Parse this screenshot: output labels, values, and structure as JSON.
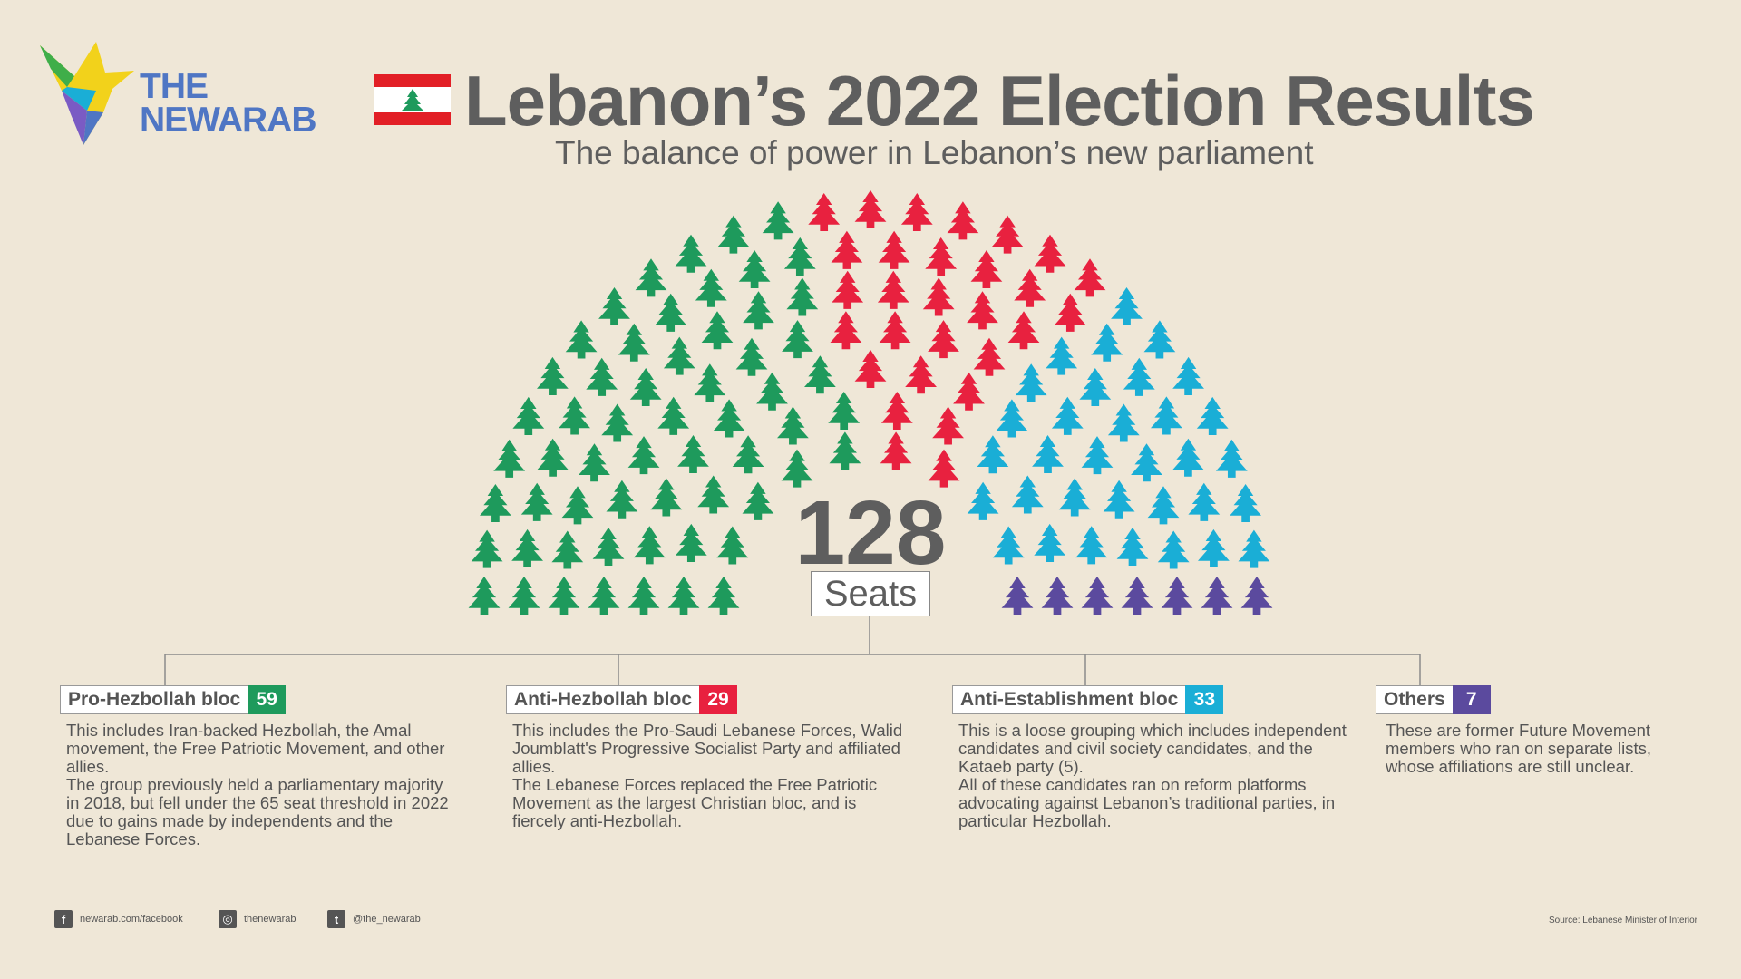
{
  "brand": {
    "line1": "THE",
    "line2": "NEWARAB"
  },
  "header": {
    "title": "Lebanon’s 2022 Election Results",
    "subtitle": "The balance of power in Lebanon’s new parliament"
  },
  "colors": {
    "background": "#efe7d7",
    "pro_hezbollah": "#1e9a5c",
    "anti_hezbollah": "#e8213f",
    "anti_establishment": "#1aaed6",
    "others": "#5b4a9e",
    "flag_red": "#e21f26"
  },
  "center": {
    "total": "128",
    "unit": "Seats"
  },
  "chart_data": {
    "type": "parliament",
    "total_seats": 128,
    "categories": [
      "Pro-Hezbollah bloc",
      "Anti-Hezbollah bloc",
      "Anti-Establishment bloc",
      "Others"
    ],
    "values": [
      59,
      29,
      33,
      7
    ],
    "colors": [
      "#1e9a5c",
      "#e8213f",
      "#1aaed6",
      "#5b4a9e"
    ],
    "marker": "cedar-tree-icon"
  },
  "blocs": [
    {
      "name": "Pro-Hezbollah bloc",
      "count": "59",
      "color": "#1e9a5c",
      "desc1": "This includes Iran-backed Hezbollah, the Amal movement, the Free Patriotic Movement, and other allies.",
      "desc2": "The group previously held a parliamentary majority in 2018, but fell under the 65 seat threshold in 2022 due to gains made by independents and the Lebanese Forces."
    },
    {
      "name": "Anti-Hezbollah bloc",
      "count": "29",
      "color": "#e8213f",
      "desc1": "This includes the Pro-Saudi Lebanese Forces, Walid Joumblatt's Progressive Socialist Party and affiliated allies.",
      "desc2": "The Lebanese Forces replaced the Free Patriotic Movement as the largest Christian bloc, and is fiercely anti-Hezbollah."
    },
    {
      "name": "Anti-Establishment bloc",
      "count": "33",
      "color": "#1aaed6",
      "desc1": "This is a loose grouping which includes independent candidates and civil society candidates, and the Kataeb party (5).",
      "desc2": "All of these candidates ran on reform platforms advocating against Lebanon’s traditional parties, in particular Hezbollah."
    },
    {
      "name": "Others",
      "count": "7",
      "color": "#5b4a9e",
      "desc1": "These are former Future Movement members who ran on separate lists, whose affiliations are still unclear.",
      "desc2": ""
    }
  ],
  "footer": {
    "facebook": "newarab.com/facebook",
    "instagram": "thenewarab",
    "twitter": "@the_newarab",
    "source": "Source: Lebanese Minister of Interior"
  }
}
